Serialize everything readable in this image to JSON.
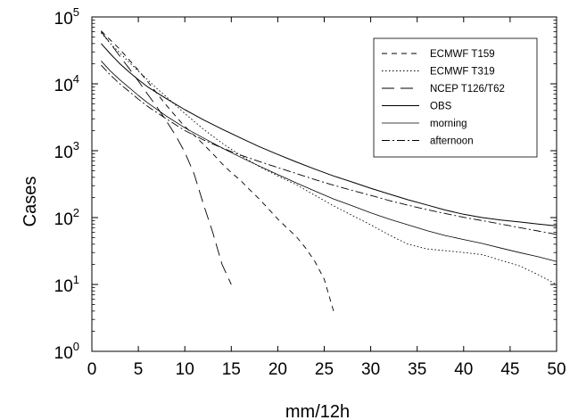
{
  "chart_data": {
    "type": "line",
    "xlabel": "mm/12h",
    "ylabel": "Cases",
    "xlim": [
      0,
      50
    ],
    "ylim_exponent": [
      0,
      5
    ],
    "yscale": "log",
    "grid": false,
    "legend_position": "top-right",
    "x_ticks": [
      "0",
      "5",
      "10",
      "15",
      "20",
      "25",
      "30",
      "35",
      "40",
      "45",
      "50"
    ],
    "y_tick_base": "10",
    "y_tick_exponents": [
      "0",
      "1",
      "2",
      "3",
      "4",
      "5"
    ],
    "reference_line": {
      "y": 100000
    },
    "series": [
      {
        "name": "ECMWF T159",
        "dash": "6,5",
        "stroke": "#000000",
        "width": 0.9,
        "x": [
          1,
          2,
          3,
          4,
          5,
          6,
          7,
          8,
          9,
          10,
          11,
          12,
          13,
          14,
          15,
          16,
          17,
          18,
          19,
          20,
          21,
          22,
          23,
          24,
          25,
          26
        ],
        "y": [
          62000,
          45000,
          33000,
          23000,
          16000,
          10800,
          7200,
          4800,
          3300,
          2300,
          1700,
          1250,
          900,
          640,
          470,
          360,
          260,
          190,
          135,
          95,
          70,
          52,
          35,
          22,
          12,
          4
        ]
      },
      {
        "name": "ECMWF T319",
        "dash": "1.5,2.5",
        "stroke": "#000000",
        "width": 0.9,
        "x": [
          1,
          2,
          3,
          4,
          5,
          6,
          7,
          8,
          9,
          10,
          12,
          14,
          16,
          18,
          20,
          22,
          24,
          26,
          28,
          30,
          32,
          34,
          36,
          38,
          40,
          42,
          44,
          46,
          48,
          50
        ],
        "y": [
          58000,
          40000,
          29000,
          21000,
          15500,
          11500,
          8500,
          6400,
          4800,
          3600,
          2100,
          1300,
          850,
          580,
          420,
          310,
          215,
          150,
          108,
          78,
          55,
          40,
          34,
          32,
          30,
          28,
          23,
          19,
          14,
          10
        ]
      },
      {
        "name": "NCEP T126/T62",
        "dash": "14,7",
        "stroke": "#000000",
        "width": 0.9,
        "x": [
          1,
          2,
          3,
          4,
          5,
          6,
          7,
          8,
          9,
          10,
          11,
          12,
          13,
          14,
          15
        ],
        "y": [
          60000,
          40000,
          26000,
          17000,
          11000,
          7000,
          4500,
          2800,
          1700,
          950,
          450,
          160,
          60,
          20,
          10
        ]
      },
      {
        "name": "OBS",
        "dash": "",
        "stroke": "#000000",
        "width": 1.0,
        "x": [
          1,
          2,
          3,
          4,
          5,
          6,
          8,
          10,
          12,
          14,
          16,
          18,
          20,
          22,
          24,
          26,
          28,
          30,
          32,
          34,
          36,
          38,
          40,
          42,
          44,
          46,
          48,
          50
        ],
        "y": [
          40000,
          28000,
          20000,
          15000,
          11500,
          9000,
          6000,
          4100,
          2900,
          2100,
          1550,
          1150,
          880,
          680,
          530,
          420,
          340,
          275,
          225,
          185,
          155,
          130,
          112,
          100,
          92,
          86,
          80,
          75
        ]
      },
      {
        "name": "morning",
        "dash": "",
        "stroke": "#000000",
        "width": 0.8,
        "x": [
          1,
          2,
          3,
          4,
          5,
          6,
          8,
          10,
          12,
          14,
          16,
          18,
          20,
          22,
          24,
          26,
          28,
          30,
          32,
          34,
          36,
          38,
          40,
          42,
          44,
          46,
          48,
          50
        ],
        "y": [
          22000,
          15500,
          11500,
          8800,
          6700,
          5200,
          3300,
          2200,
          1550,
          1100,
          800,
          590,
          440,
          330,
          250,
          190,
          150,
          118,
          95,
          78,
          64,
          54,
          47,
          41,
          35,
          30,
          26,
          22
        ]
      },
      {
        "name": "afternoon",
        "dash": "9,3,2,3",
        "stroke": "#000000",
        "width": 0.9,
        "x": [
          1,
          2,
          3,
          4,
          5,
          6,
          8,
          10,
          12,
          14,
          16,
          18,
          20,
          22,
          24,
          26,
          28,
          30,
          32,
          34,
          36,
          38,
          40,
          42,
          44,
          46,
          48,
          50
        ],
        "y": [
          19000,
          13500,
          10000,
          7700,
          5900,
          4600,
          3000,
          2000,
          1450,
          1100,
          860,
          690,
          560,
          455,
          370,
          305,
          255,
          215,
          180,
          153,
          132,
          115,
          101,
          90,
          80,
          71,
          63,
          56
        ]
      }
    ]
  }
}
